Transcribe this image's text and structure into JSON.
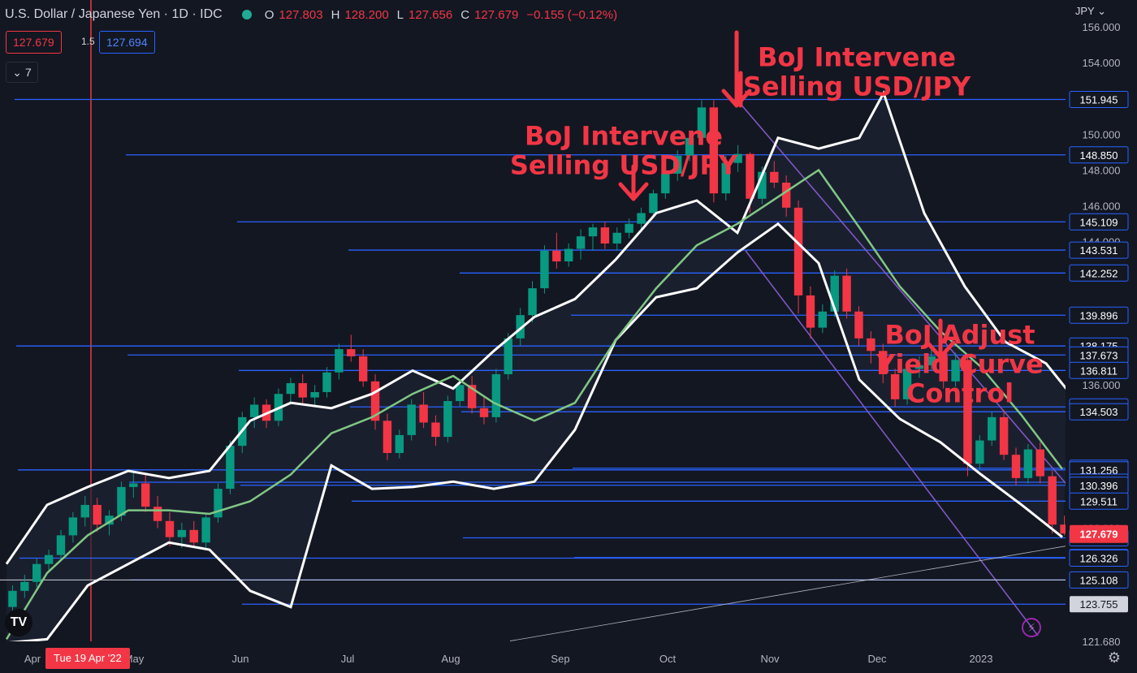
{
  "header": {
    "title": "U.S. Dollar / Japanese Yen · 1D · IDC",
    "o_label": "O",
    "o_value": "127.803",
    "h_label": "H",
    "h_value": "128.200",
    "l_label": "L",
    "l_value": "127.656",
    "c_label": "C",
    "c_value": "127.679",
    "change": "−0.155 (−0.12%)"
  },
  "trade": {
    "sell": "127.679",
    "spread": "1.5",
    "buy": "127.694"
  },
  "indicators_count": "7",
  "currency": "JPY",
  "logo_text": "TV",
  "crosshair_date": "Tue 19 Apr '22",
  "colors": {
    "background": "#131722",
    "up": "#089981",
    "down": "#f23645",
    "band": "#ffffff",
    "midline": "#81c784",
    "level": "#2962ff",
    "channel": "#7e57c2",
    "annotation": "#f23645"
  },
  "chart_data": {
    "type": "candlestick",
    "ylim": [
      121.68,
      157.5
    ],
    "y_ticks": [
      {
        "value": 156.0,
        "label": "156.000"
      },
      {
        "value": 154.0,
        "label": "154.000"
      },
      {
        "value": 150.0,
        "label": "150.000"
      },
      {
        "value": 148.0,
        "label": "148.000"
      },
      {
        "value": 146.0,
        "label": "146.000"
      },
      {
        "value": 144.0,
        "label": "144.000"
      },
      {
        "value": 136.0,
        "label": "136.000"
      },
      {
        "value": 128.0,
        "label": "128.000"
      },
      {
        "value": 121.68,
        "label": "121.680"
      }
    ],
    "x_ticks": [
      "Apr",
      "May",
      "Jun",
      "Jul",
      "Aug",
      "Sep",
      "Oct",
      "Nov",
      "Dec",
      "2023"
    ],
    "last_price": {
      "value": 127.679,
      "label": "127.679"
    },
    "levels": [
      {
        "value": 151.945,
        "label": "151.945"
      },
      {
        "value": 148.85,
        "label": "148.850"
      },
      {
        "value": 145.109,
        "label": "145.109"
      },
      {
        "value": 143.531,
        "label": "143.531"
      },
      {
        "value": 142.252,
        "label": "142.252"
      },
      {
        "value": 139.896,
        "label": "139.896"
      },
      {
        "value": 138.175,
        "label": "138.175"
      },
      {
        "value": 137.673,
        "label": "137.673"
      },
      {
        "value": 136.811,
        "label": "136.811"
      },
      {
        "value": 134.774,
        "label": "134.774"
      },
      {
        "value": 134.503,
        "label": "134.503"
      },
      {
        "value": 131.349,
        "label": "131.349"
      },
      {
        "value": 131.256,
        "label": "131.256"
      },
      {
        "value": 130.567,
        "label": "130.567"
      },
      {
        "value": 130.396,
        "label": "130.396"
      },
      {
        "value": 129.511,
        "label": "129.511"
      },
      {
        "value": 127.46,
        "label": "127.460"
      },
      {
        "value": 126.362,
        "label": "126.362"
      },
      {
        "value": 126.326,
        "label": "126.326"
      },
      {
        "value": 125.108,
        "label": "125.108"
      },
      {
        "value": 123.755,
        "label": "123.755"
      }
    ],
    "annotations": [
      {
        "lines": [
          "BoJ Intervene",
          "Selling USD/JPY"
        ],
        "price": 153.8
      },
      {
        "lines": [
          "BoJ Intervene",
          "Selling USD/JPY"
        ],
        "price": 149.4
      },
      {
        "lines": [
          "BoJ Adjust",
          "Yield Curve",
          "Control"
        ],
        "price": 138.3
      }
    ],
    "bollinger": {
      "upper": [
        [
          0,
          126.0
        ],
        [
          0.05,
          129.3
        ],
        [
          0.1,
          130.3
        ],
        [
          0.15,
          131.2
        ],
        [
          0.2,
          130.8
        ],
        [
          0.25,
          131.2
        ],
        [
          0.3,
          134.0
        ],
        [
          0.35,
          135.0
        ],
        [
          0.4,
          134.7
        ],
        [
          0.45,
          135.5
        ],
        [
          0.5,
          136.8
        ],
        [
          0.55,
          135.8
        ],
        [
          0.6,
          137.9
        ],
        [
          0.65,
          139.8
        ],
        [
          0.7,
          140.8
        ],
        [
          0.75,
          143.0
        ],
        [
          0.8,
          145.6
        ],
        [
          0.85,
          146.3
        ],
        [
          0.9,
          144.5
        ],
        [
          0.95,
          149.8
        ],
        [
          1.0,
          149.2
        ],
        [
          1.05,
          149.8
        ],
        [
          1.08,
          152.3
        ],
        [
          1.13,
          145.6
        ],
        [
          1.18,
          141.5
        ],
        [
          1.23,
          138.4
        ],
        [
          1.28,
          137.2
        ],
        [
          1.31,
          135.5
        ]
      ],
      "middle": [
        [
          0,
          121.8
        ],
        [
          0.05,
          125.5
        ],
        [
          0.1,
          127.6
        ],
        [
          0.15,
          129.0
        ],
        [
          0.2,
          129.0
        ],
        [
          0.25,
          128.8
        ],
        [
          0.3,
          129.5
        ],
        [
          0.35,
          131.0
        ],
        [
          0.4,
          133.3
        ],
        [
          0.45,
          134.2
        ],
        [
          0.5,
          135.5
        ],
        [
          0.55,
          136.5
        ],
        [
          0.6,
          135.0
        ],
        [
          0.65,
          134.0
        ],
        [
          0.7,
          135.0
        ],
        [
          0.75,
          138.5
        ],
        [
          0.8,
          141.4
        ],
        [
          0.85,
          143.8
        ],
        [
          0.9,
          145.0
        ],
        [
          0.95,
          146.5
        ],
        [
          1.0,
          148.0
        ],
        [
          1.05,
          144.8
        ],
        [
          1.1,
          141.5
        ],
        [
          1.15,
          139.0
        ],
        [
          1.2,
          137.0
        ],
        [
          1.25,
          134.3
        ],
        [
          1.3,
          131.3
        ]
      ],
      "lower": [
        [
          0,
          121.6
        ],
        [
          0.05,
          121.8
        ],
        [
          0.1,
          124.8
        ],
        [
          0.15,
          126.0
        ],
        [
          0.2,
          127.2
        ],
        [
          0.25,
          126.8
        ],
        [
          0.3,
          124.5
        ],
        [
          0.35,
          123.6
        ],
        [
          0.4,
          131.5
        ],
        [
          0.45,
          130.2
        ],
        [
          0.5,
          130.3
        ],
        [
          0.55,
          130.6
        ],
        [
          0.6,
          130.2
        ],
        [
          0.65,
          130.6
        ],
        [
          0.7,
          133.5
        ],
        [
          0.75,
          138.5
        ],
        [
          0.8,
          140.9
        ],
        [
          0.85,
          141.4
        ],
        [
          0.9,
          143.4
        ],
        [
          0.95,
          145.0
        ],
        [
          1.0,
          142.8
        ],
        [
          1.05,
          136.3
        ],
        [
          1.1,
          134.1
        ],
        [
          1.15,
          132.8
        ],
        [
          1.2,
          131.0
        ],
        [
          1.25,
          129.3
        ],
        [
          1.3,
          127.5
        ]
      ]
    },
    "candles": [
      [
        123.6,
        124.8,
        123.2,
        124.5
      ],
      [
        124.5,
        125.4,
        124.1,
        125.0
      ],
      [
        125.0,
        126.3,
        124.7,
        126.0
      ],
      [
        126.0,
        126.8,
        125.6,
        126.5
      ],
      [
        126.5,
        127.9,
        126.2,
        127.6
      ],
      [
        127.6,
        128.9,
        127.2,
        128.6
      ],
      [
        128.6,
        129.8,
        128.1,
        129.3
      ],
      [
        129.3,
        129.7,
        127.8,
        128.2
      ],
      [
        128.2,
        129.0,
        127.6,
        128.7
      ],
      [
        128.7,
        130.6,
        128.4,
        130.3
      ],
      [
        130.3,
        131.1,
        129.7,
        130.5
      ],
      [
        130.5,
        131.0,
        128.9,
        129.2
      ],
      [
        129.2,
        129.8,
        128.0,
        128.4
      ],
      [
        128.4,
        128.9,
        127.0,
        127.5
      ],
      [
        127.5,
        128.3,
        126.9,
        127.9
      ],
      [
        127.9,
        128.4,
        126.9,
        127.2
      ],
      [
        127.2,
        128.8,
        126.9,
        128.6
      ],
      [
        128.6,
        130.5,
        128.3,
        130.2
      ],
      [
        130.2,
        132.9,
        129.9,
        132.6
      ],
      [
        132.6,
        134.5,
        132.2,
        134.2
      ],
      [
        134.2,
        135.3,
        133.6,
        134.9
      ],
      [
        134.9,
        135.2,
        133.6,
        134.0
      ],
      [
        134.0,
        135.8,
        133.7,
        135.5
      ],
      [
        135.5,
        136.4,
        134.9,
        136.1
      ],
      [
        136.1,
        136.6,
        134.9,
        135.3
      ],
      [
        135.3,
        136.0,
        134.8,
        135.6
      ],
      [
        135.6,
        137.0,
        135.3,
        136.7
      ],
      [
        136.7,
        138.3,
        136.3,
        138.0
      ],
      [
        138.0,
        138.8,
        137.3,
        137.6
      ],
      [
        137.6,
        138.0,
        135.9,
        136.2
      ],
      [
        136.2,
        136.6,
        133.5,
        134.0
      ],
      [
        134.0,
        134.4,
        131.8,
        132.2
      ],
      [
        132.2,
        133.5,
        131.9,
        133.2
      ],
      [
        133.2,
        135.2,
        132.9,
        134.9
      ],
      [
        134.9,
        135.6,
        133.6,
        133.9
      ],
      [
        133.9,
        134.3,
        132.6,
        133.1
      ],
      [
        133.1,
        135.4,
        132.8,
        135.1
      ],
      [
        135.1,
        136.3,
        134.8,
        136.0
      ],
      [
        136.0,
        136.5,
        134.4,
        134.7
      ],
      [
        134.7,
        135.3,
        133.8,
        134.2
      ],
      [
        134.2,
        136.9,
        133.9,
        136.6
      ],
      [
        136.6,
        138.9,
        136.3,
        138.6
      ],
      [
        138.6,
        140.3,
        138.2,
        139.9
      ],
      [
        139.9,
        141.8,
        139.5,
        141.4
      ],
      [
        141.4,
        143.8,
        141.1,
        143.5
      ],
      [
        143.5,
        144.5,
        142.5,
        142.9
      ],
      [
        142.9,
        143.9,
        142.6,
        143.6
      ],
      [
        143.6,
        144.7,
        143.0,
        144.3
      ],
      [
        144.3,
        145.0,
        143.5,
        144.8
      ],
      [
        144.8,
        145.1,
        143.6,
        143.9
      ],
      [
        143.9,
        144.8,
        143.5,
        144.5
      ],
      [
        144.5,
        145.3,
        144.2,
        145.0
      ],
      [
        145.0,
        145.9,
        144.6,
        145.6
      ],
      [
        145.6,
        146.9,
        145.4,
        146.7
      ],
      [
        146.7,
        148.0,
        146.4,
        147.8
      ],
      [
        147.8,
        149.1,
        147.4,
        148.8
      ],
      [
        148.8,
        150.1,
        148.5,
        149.8
      ],
      [
        149.8,
        151.9,
        149.4,
        151.5
      ],
      [
        151.5,
        151.9,
        146.2,
        146.7
      ],
      [
        146.7,
        148.8,
        146.3,
        148.4
      ],
      [
        148.4,
        149.4,
        147.9,
        148.9
      ],
      [
        148.9,
        149.0,
        145.6,
        146.4
      ],
      [
        146.4,
        148.2,
        146.1,
        147.9
      ],
      [
        147.9,
        148.5,
        147.0,
        147.3
      ],
      [
        147.3,
        147.7,
        145.4,
        145.9
      ],
      [
        145.9,
        146.3,
        140.0,
        141.0
      ],
      [
        141.0,
        141.5,
        138.6,
        139.2
      ],
      [
        139.2,
        140.5,
        138.9,
        140.1
      ],
      [
        140.1,
        142.4,
        139.8,
        142.1
      ],
      [
        142.1,
        142.5,
        139.7,
        140.1
      ],
      [
        140.1,
        140.4,
        138.2,
        138.6
      ],
      [
        138.6,
        139.0,
        137.2,
        137.9
      ],
      [
        137.9,
        138.3,
        136.1,
        136.6
      ],
      [
        136.6,
        136.9,
        134.8,
        135.2
      ],
      [
        135.2,
        137.2,
        134.9,
        136.9
      ],
      [
        136.9,
        137.6,
        136.4,
        137.1
      ],
      [
        137.1,
        138.1,
        136.8,
        137.6
      ],
      [
        137.6,
        137.8,
        135.8,
        136.2
      ],
      [
        136.2,
        137.8,
        135.9,
        137.4
      ],
      [
        137.4,
        137.7,
        130.9,
        131.6
      ],
      [
        131.6,
        133.2,
        131.3,
        132.9
      ],
      [
        132.9,
        134.5,
        132.6,
        134.2
      ],
      [
        134.2,
        134.6,
        131.8,
        132.1
      ],
      [
        132.1,
        132.5,
        130.4,
        130.8
      ],
      [
        130.8,
        132.7,
        130.5,
        132.4
      ],
      [
        132.4,
        132.8,
        130.5,
        130.9
      ],
      [
        130.9,
        131.2,
        127.7,
        128.2
      ],
      [
        128.2,
        128.7,
        127.6,
        127.7
      ]
    ]
  }
}
